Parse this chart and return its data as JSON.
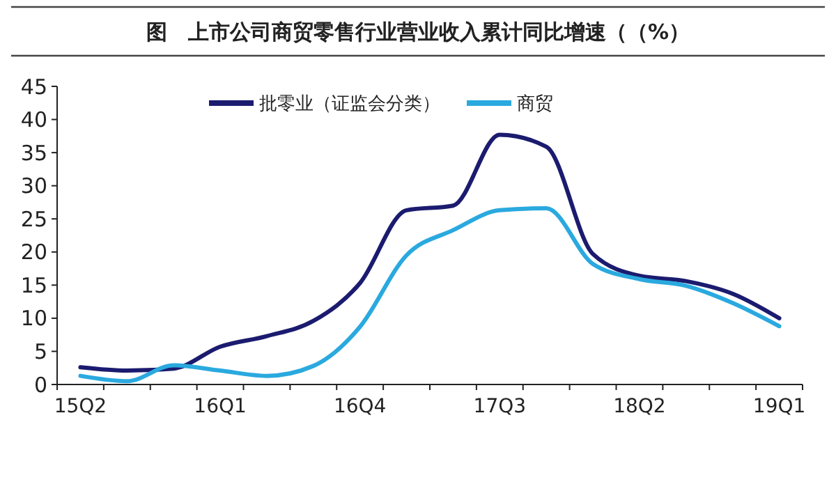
{
  "chart_data": {
    "type": "line",
    "title": "图　上市公司商贸零售行业营业收入累计同比增速（（%）",
    "categories": [
      "15Q2",
      null,
      null,
      "16Q1",
      null,
      null,
      "16Q4",
      null,
      null,
      "17Q3",
      null,
      null,
      "18Q2",
      null,
      null,
      "19Q1"
    ],
    "series": [
      {
        "name": "批零业（证监会分类）",
        "color": "#1b1b6f",
        "values": [
          2.6,
          2.1,
          2.4,
          5.7,
          7.3,
          9.6,
          15.3,
          26.3,
          27,
          37.7,
          35.9,
          19.7,
          16.4,
          15.6,
          13.7,
          10.0
        ]
      },
      {
        "name": "商贸",
        "color": "#2aa9df",
        "values": [
          1.3,
          0.5,
          2.9,
          2.1,
          1.3,
          2.8,
          8.7,
          19.5,
          23.3,
          26.3,
          26.6,
          18.2,
          15.9,
          14.9,
          12.3,
          8.8
        ]
      }
    ],
    "ylim": [
      0,
      45
    ],
    "yticks": [
      0,
      5,
      10,
      15,
      20,
      25,
      30,
      35,
      40,
      45
    ],
    "grid": false,
    "legend": "top",
    "marker": "none",
    "line_style": "solid"
  }
}
